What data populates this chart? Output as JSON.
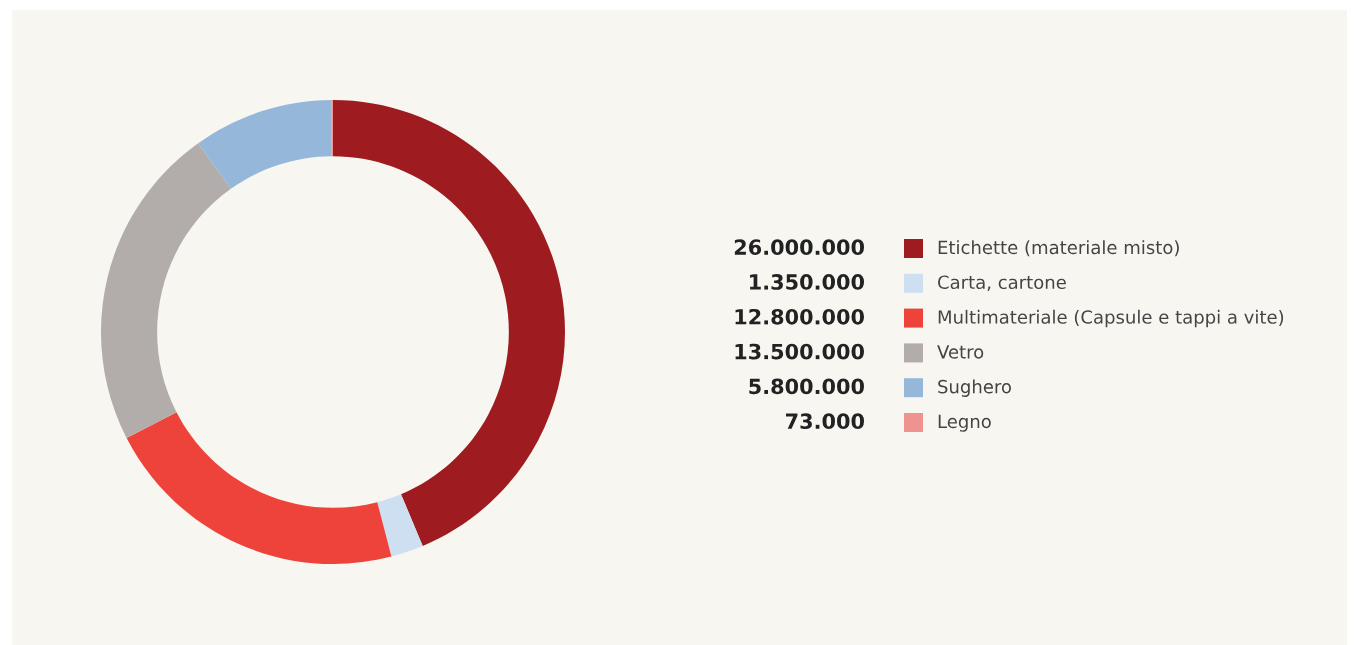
{
  "chart_data": {
    "type": "donut",
    "categories": [
      "Etichette (materiale misto)",
      "Carta, cartone",
      "Multimateriale (Capsule e tappi a vite)",
      "Vetro",
      "Sughero",
      "Legno"
    ],
    "values": [
      26000000,
      1350000,
      12800000,
      13500000,
      5800000,
      73000
    ],
    "value_labels": [
      "26.000.000",
      "1.350.000",
      "12.800.000",
      "13.500.000",
      "5.800.000",
      "73.000"
    ],
    "colors": [
      "#9e1b20",
      "#cddff0",
      "#ee433b",
      "#b2adab",
      "#95b8da",
      "#ef9391"
    ],
    "legend": "right"
  }
}
